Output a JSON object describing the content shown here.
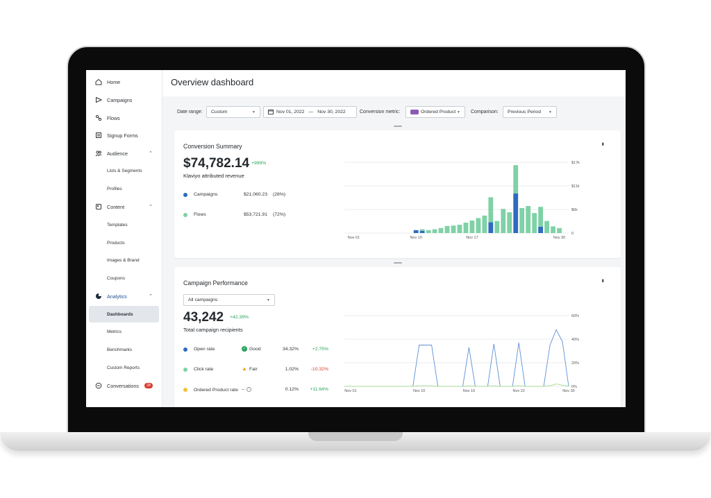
{
  "sidebar": {
    "items": [
      {
        "label": "Home",
        "icon": "home-icon"
      },
      {
        "label": "Campaigns",
        "icon": "send-icon"
      },
      {
        "label": "Flows",
        "icon": "flows-icon"
      },
      {
        "label": "Signup Forms",
        "icon": "form-icon"
      },
      {
        "label": "Audience",
        "icon": "people-icon"
      },
      {
        "label": "Content",
        "icon": "content-icon"
      },
      {
        "label": "Analytics",
        "icon": "pie-chart-icon"
      },
      {
        "label": "Conversations",
        "icon": "chat-icon"
      }
    ],
    "audience_sub": [
      "Lists & Segments",
      "Profiles"
    ],
    "content_sub": [
      "Templates",
      "Products",
      "Images & Brand",
      "Coupons"
    ],
    "analytics_sub": [
      "Dashboards",
      "Metrics",
      "Benchmarks",
      "Custom Reports"
    ],
    "conversations_badge": "28"
  },
  "header": {
    "title": "Overview dashboard"
  },
  "filters": {
    "date_range_label": "Date range:",
    "date_range_value": "Custom",
    "start_date": "Nov 01, 2022",
    "end_date": "Nov 30, 2022",
    "date_separator": "—",
    "conversion_metric_label": "Conversion metric:",
    "conversion_metric_value": "Ordered Product",
    "comparison_label": "Comparison:",
    "comparison_value": "Previous Period"
  },
  "conversion_summary": {
    "title": "Conversion Summary",
    "total": "$74,782.14",
    "delta": "+999%",
    "subtitle": "Klaviyo attributed revenue",
    "rows": [
      {
        "name": "Campaigns",
        "value": "$21,060.23",
        "pct": "(28%)",
        "color": "#2e6bbf"
      },
      {
        "name": "Flows",
        "value": "$53,721.91",
        "pct": "(72%)",
        "color": "#7fd1a6"
      }
    ]
  },
  "campaign_performance": {
    "title": "Campaign Performance",
    "filter_value": "All campaigns",
    "total": "43,242",
    "delta": "+42.39%",
    "subtitle": "Total campaign recipients",
    "rows": [
      {
        "name": "Open rate",
        "status": "Good",
        "status_icon": "check-circle-icon",
        "value": "34.32%",
        "delta": "+2.75%",
        "color": "#2e6bbf",
        "delta_color": "#27a35a"
      },
      {
        "name": "Click rate",
        "status": "Fair",
        "status_icon": "warning-icon",
        "value": "1.02%",
        "delta": "-10.32%",
        "color": "#7fd1a6",
        "delta_color": "#d93a2b"
      },
      {
        "name": "Ordered Product rate",
        "status": "–",
        "status_icon": "help-icon",
        "value": "0.12%",
        "delta": "+11.64%",
        "color": "#f2c23a",
        "delta_color": "#27a35a"
      }
    ]
  },
  "chart_data": [
    {
      "type": "bar",
      "stacked": true,
      "x_tick_labels": [
        "Nov 01",
        "Nov 10",
        "Nov 17",
        "Nov 30"
      ],
      "y_tick_labels": [
        "$17k",
        "$11k",
        "$6k",
        "0"
      ],
      "ylim": [
        0,
        17000
      ],
      "grid": true,
      "series": [
        {
          "color": "#2e6bbf",
          "values": [
            0,
            0,
            0,
            0,
            0,
            0,
            0,
            0,
            0,
            0,
            0,
            700,
            500,
            0,
            0,
            0,
            0,
            0,
            0,
            0,
            0,
            0,
            0,
            2600,
            0,
            0,
            0,
            9500,
            0,
            0,
            0,
            1500,
            0,
            0,
            0,
            0
          ]
        },
        {
          "color": "#7fd1a6",
          "values": [
            0,
            0,
            0,
            0,
            0,
            0,
            0,
            0,
            0,
            0,
            0,
            0,
            400,
            700,
            900,
            1200,
            1700,
            1800,
            2000,
            2500,
            3000,
            3600,
            4200,
            6000,
            2900,
            5800,
            5000,
            6800,
            6000,
            6500,
            4800,
            4800,
            2900,
            1600,
            1200,
            0
          ]
        }
      ]
    },
    {
      "type": "line",
      "x_tick_labels": [
        "Nov 01",
        "Nov 10",
        "Nov 16",
        "Nov 22",
        "Nov 30"
      ],
      "y_tick_labels": [
        "60%",
        "40%",
        "20%",
        "0%"
      ],
      "ylim": [
        0,
        60
      ],
      "grid": true,
      "series": [
        {
          "color": "#5b8fd6",
          "values": [
            0,
            0,
            0,
            0,
            0,
            0,
            0,
            0,
            0,
            0,
            0,
            0,
            35,
            35,
            35,
            0,
            0,
            0,
            0,
            0,
            33,
            0,
            0,
            0,
            36,
            0,
            0,
            0,
            37,
            0,
            0,
            0,
            0,
            35,
            48,
            38,
            0
          ]
        },
        {
          "color": "#a5d98f",
          "values": [
            0,
            0,
            0,
            0,
            0,
            0,
            0,
            0,
            0,
            0,
            0,
            0,
            0.5,
            0.5,
            0.5,
            0,
            0,
            0,
            0,
            0,
            0.5,
            0,
            0,
            0,
            0.5,
            0,
            0,
            0,
            0.5,
            0,
            0,
            0,
            0,
            0.5,
            2,
            1,
            0
          ]
        }
      ]
    }
  ]
}
